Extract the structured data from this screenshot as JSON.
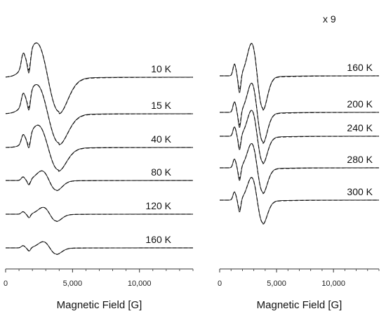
{
  "chart_data": [
    {
      "type": "line",
      "panel": "left",
      "xlabel": "Magnetic Field [G]",
      "xlim": [
        0,
        14000
      ],
      "xticks": [
        {
          "value": 0,
          "label": "0"
        },
        {
          "value": 5000,
          "label": "5,000"
        },
        {
          "value": 10000,
          "label": "10,000"
        }
      ],
      "scale_label": "",
      "line_styles": [
        "solid",
        "dashed"
      ],
      "series": [
        {
          "label": "10 K",
          "amplitude": 1.0,
          "derivative_peak_G": 2300,
          "derivative_trough_G": 4000
        },
        {
          "label": "15 K",
          "amplitude": 0.85,
          "derivative_peak_G": 2300,
          "derivative_trough_G": 4000
        },
        {
          "label": "40 K",
          "amplitude": 0.65,
          "derivative_peak_G": 2400,
          "derivative_trough_G": 3950
        },
        {
          "label": "80 K",
          "amplitude": 0.28,
          "derivative_peak_G": 2700,
          "derivative_trough_G": 3800
        },
        {
          "label": "120 K",
          "amplitude": 0.2,
          "derivative_peak_G": 2800,
          "derivative_trough_G": 3800
        },
        {
          "label": "160 K",
          "amplitude": 0.18,
          "derivative_peak_G": 2800,
          "derivative_trough_G": 3800
        }
      ]
    },
    {
      "type": "line",
      "panel": "right",
      "xlabel": "Magnetic Field [G]",
      "xlim": [
        0,
        14000
      ],
      "xticks": [
        {
          "value": 0,
          "label": "0"
        },
        {
          "value": 5000,
          "label": "5,000"
        },
        {
          "value": 10000,
          "label": "10,000"
        }
      ],
      "scale_label": "x 9",
      "line_styles": [
        "solid",
        "dashed"
      ],
      "series": [
        {
          "label": "160 K",
          "amplitude": 1.0,
          "derivative_peak_G": 2800,
          "derivative_trough_G": 3800
        },
        {
          "label": "200 K",
          "amplitude": 0.9,
          "derivative_peak_G": 2800,
          "derivative_trough_G": 3800
        },
        {
          "label": "240 K",
          "amplitude": 0.8,
          "derivative_peak_G": 2800,
          "derivative_trough_G": 3800
        },
        {
          "label": "280 K",
          "amplitude": 0.75,
          "derivative_peak_G": 2800,
          "derivative_trough_G": 3800
        },
        {
          "label": "300 K",
          "amplitude": 0.7,
          "derivative_peak_G": 2800,
          "derivative_trough_G": 3800
        }
      ]
    }
  ]
}
